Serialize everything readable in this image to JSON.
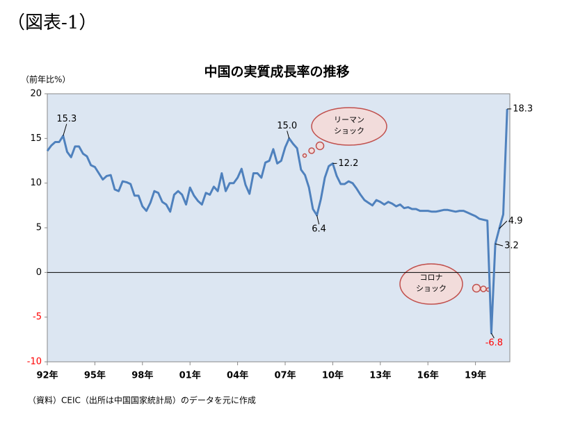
{
  "figure_label": "（図表-1）",
  "chart_data": {
    "type": "line",
    "title": "中国の実質成長率の推移",
    "y_unit": "（前年比%）",
    "source": "（資料）CEIC（出所は中国国家統計局）のデータを元に作成",
    "categories": [
      "92年",
      null,
      null,
      null,
      null,
      null,
      null,
      null,
      null,
      null,
      null,
      null,
      "95年",
      null,
      null,
      null,
      null,
      null,
      null,
      null,
      null,
      null,
      null,
      null,
      "98年",
      null,
      null,
      null,
      null,
      null,
      null,
      null,
      null,
      null,
      null,
      null,
      "01年",
      null,
      null,
      null,
      null,
      null,
      null,
      null,
      null,
      null,
      null,
      null,
      "04年",
      null,
      null,
      null,
      null,
      null,
      null,
      null,
      null,
      null,
      null,
      null,
      "07年",
      null,
      null,
      null,
      null,
      null,
      null,
      null,
      null,
      null,
      null,
      null,
      "10年",
      null,
      null,
      null,
      null,
      null,
      null,
      null,
      null,
      null,
      null,
      null,
      "13年",
      null,
      null,
      null,
      null,
      null,
      null,
      null,
      null,
      null,
      null,
      null,
      "16年",
      null,
      null,
      null,
      null,
      null,
      null,
      null,
      null,
      null,
      null,
      null,
      "19年",
      null,
      null,
      null,
      null,
      null,
      null,
      null,
      null
    ],
    "values": [
      13.6,
      14.2,
      14.6,
      14.6,
      15.3,
      13.5,
      12.9,
      14.1,
      14.1,
      13.3,
      13.0,
      12.0,
      11.8,
      11.1,
      10.4,
      10.8,
      10.9,
      9.3,
      9.1,
      10.2,
      10.1,
      9.9,
      8.6,
      8.6,
      7.4,
      6.9,
      7.8,
      9.1,
      8.9,
      7.9,
      7.6,
      6.8,
      8.7,
      9.1,
      8.7,
      7.6,
      9.5,
      8.6,
      8.0,
      7.6,
      8.9,
      8.7,
      9.6,
      9.1,
      11.1,
      9.1,
      10.0,
      10.0,
      10.6,
      11.6,
      9.8,
      8.8,
      11.1,
      11.1,
      10.6,
      12.3,
      12.5,
      13.8,
      12.2,
      12.5,
      14.0,
      15.0,
      14.4,
      13.9,
      11.5,
      10.9,
      9.5,
      7.1,
      6.4,
      8.2,
      10.6,
      11.9,
      12.2,
      10.8,
      9.9,
      9.9,
      10.2,
      10.0,
      9.4,
      8.7,
      8.1,
      7.8,
      7.5,
      8.1,
      7.9,
      7.6,
      7.9,
      7.7,
      7.4,
      7.6,
      7.2,
      7.3,
      7.1,
      7.1,
      6.9,
      6.9,
      6.9,
      6.8,
      6.8,
      6.9,
      7.0,
      7.0,
      6.9,
      6.8,
      6.9,
      6.9,
      6.7,
      6.5,
      6.3,
      6.0,
      5.9,
      5.8,
      -6.8,
      3.2,
      4.9,
      6.5,
      18.3
    ],
    "value_labels": [
      null,
      null,
      null,
      null,
      "15.3",
      null,
      null,
      null,
      null,
      null,
      null,
      null,
      null,
      null,
      null,
      null,
      null,
      null,
      null,
      null,
      null,
      null,
      null,
      null,
      null,
      null,
      null,
      null,
      null,
      null,
      null,
      null,
      null,
      null,
      null,
      null,
      null,
      null,
      null,
      null,
      null,
      null,
      null,
      null,
      null,
      null,
      null,
      null,
      null,
      null,
      null,
      null,
      null,
      null,
      null,
      null,
      null,
      null,
      null,
      null,
      null,
      "15.0",
      null,
      null,
      null,
      null,
      null,
      null,
      "6.4",
      null,
      null,
      null,
      "12.2",
      null,
      null,
      null,
      null,
      null,
      null,
      null,
      null,
      null,
      null,
      null,
      null,
      null,
      null,
      null,
      null,
      null,
      null,
      null,
      null,
      null,
      null,
      null,
      null,
      null,
      null,
      null,
      null,
      null,
      null,
      null,
      null,
      null,
      null,
      null,
      null,
      null,
      null,
      null,
      "-6.8",
      "3.2",
      "4.9",
      null,
      "18.3"
    ],
    "color": "#4f81bd",
    "negative_color": "#ff0000",
    "ylim": [
      -10,
      20
    ],
    "yticks": [
      -10,
      -5,
      0,
      5,
      10,
      15,
      20
    ],
    "annotations": [
      {
        "lines": [
          "リーマン",
          "ショック"
        ]
      },
      {
        "lines": [
          "コロナ",
          "ショック"
        ]
      }
    ]
  }
}
